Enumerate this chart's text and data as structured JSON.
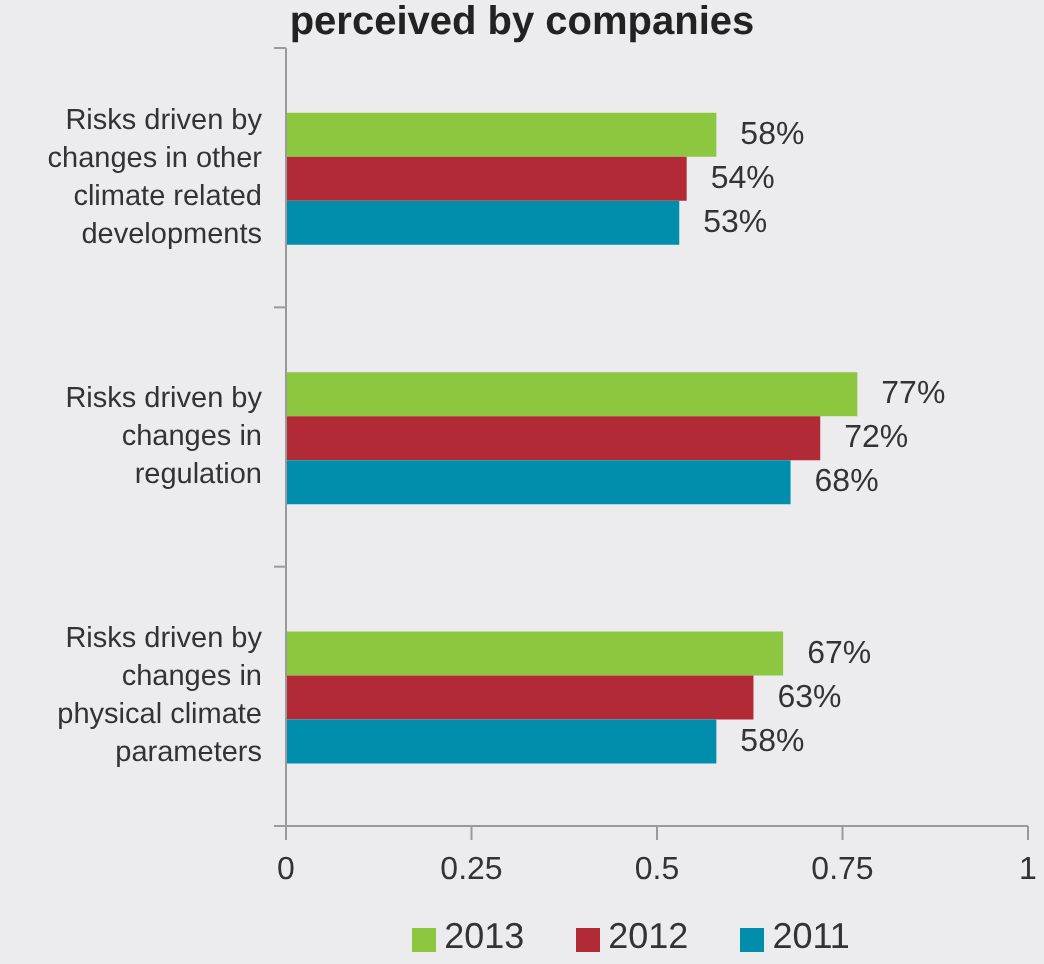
{
  "chart_data": {
    "type": "bar",
    "orientation": "horizontal",
    "title": "perceived by companies",
    "categories": [
      "Risks driven by changes in other climate related developments",
      "Risks driven by changes in regulation",
      "Risks driven by changes in physical climate parameters"
    ],
    "series": [
      {
        "name": "2013",
        "color": "#8dc63f",
        "values": [
          0.58,
          0.77,
          0.67
        ],
        "value_labels": [
          "58%",
          "77%",
          "67%"
        ]
      },
      {
        "name": "2012",
        "color": "#b22a35",
        "values": [
          0.54,
          0.72,
          0.63
        ],
        "value_labels": [
          "54%",
          "72%",
          "63%"
        ]
      },
      {
        "name": "2011",
        "color": "#008eac",
        "values": [
          0.53,
          0.68,
          0.58
        ],
        "value_labels": [
          "53%",
          "68%",
          "58%"
        ]
      }
    ],
    "xlim": [
      0,
      1
    ],
    "xticks": [
      0,
      0.25,
      0.5,
      0.75,
      1
    ],
    "legend": "bottom",
    "grid": false
  }
}
